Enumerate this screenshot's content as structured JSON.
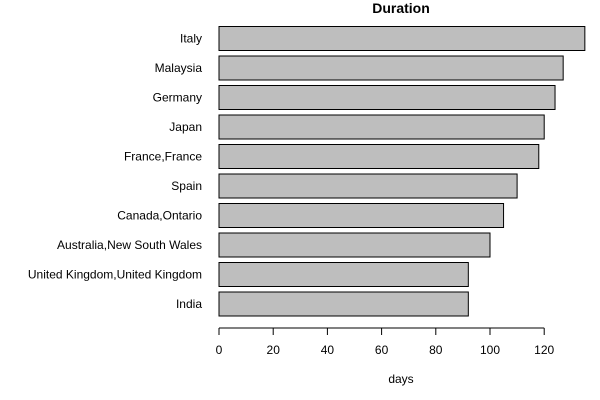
{
  "chart_data": {
    "type": "bar",
    "orientation": "horizontal",
    "title": "Duration",
    "xlabel": "days",
    "ylabel": "",
    "categories": [
      "Italy",
      "Malaysia",
      "Germany",
      "Japan",
      "France,France",
      "Spain",
      "Canada,Ontario",
      "Australia,New South Wales",
      "United Kingdom,United Kingdom",
      "India"
    ],
    "values": [
      135,
      127,
      124,
      120,
      118,
      110,
      105,
      100,
      92,
      92
    ],
    "xlim": [
      0,
      135
    ],
    "xticks": [
      0,
      20,
      40,
      60,
      80,
      100,
      120
    ],
    "grid": false,
    "legend": "none",
    "bar_color": "#bebebe",
    "border_color": "#000000"
  }
}
